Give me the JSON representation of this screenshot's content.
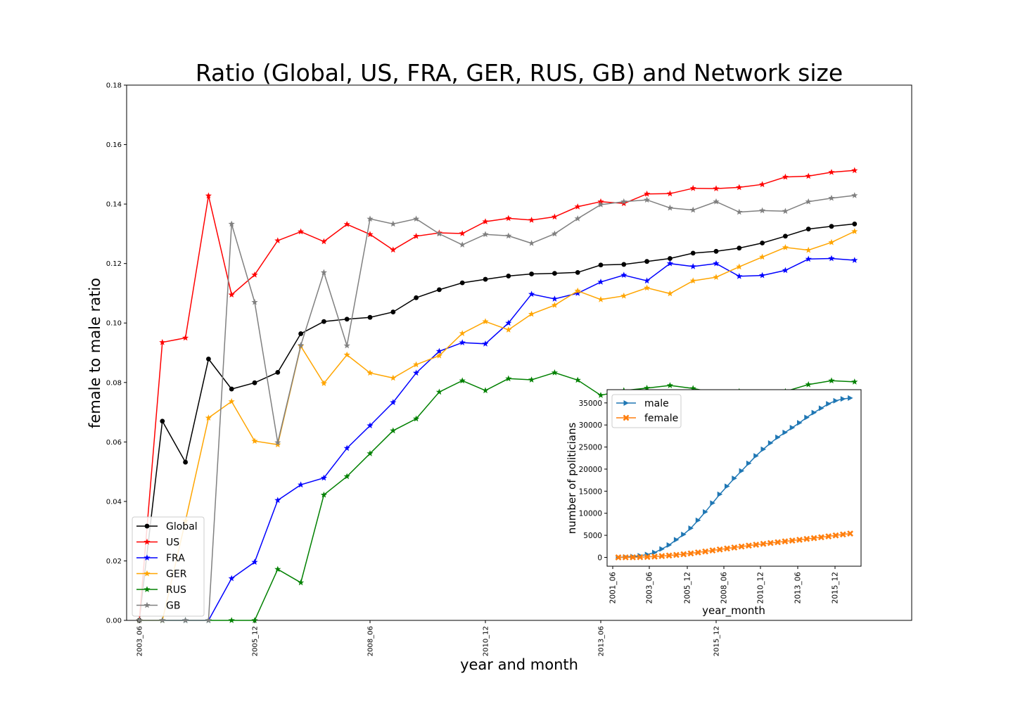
{
  "chart_data": [
    {
      "type": "line",
      "title": "Ratio (Global, US, FRA, GER, RUS, GB) and Network size",
      "xlabel": "year and month",
      "ylabel": "female to male ratio",
      "ylim": [
        0,
        0.18
      ],
      "yticks": [
        "0.00",
        "0.02",
        "0.04",
        "0.06",
        "0.08",
        "0.10",
        "0.12",
        "0.14",
        "0.16",
        "0.18"
      ],
      "xtick_labels": [
        "2003_06",
        "2005_12",
        "2008_06",
        "2010_12",
        "2013_06",
        "2015_12"
      ],
      "legend": "lower-left",
      "series": [
        {
          "name": "Global",
          "color": "#000000",
          "marker": "circle",
          "values": [
            null,
            0,
            0.067,
            0.0532,
            0.0879,
            0.0778,
            0.0799,
            0.0834,
            0.0964,
            0.1005,
            0.1013,
            0.1019,
            0.1037,
            0.1085,
            0.1112,
            0.1135,
            0.1147,
            0.1158,
            0.1165,
            0.1167,
            0.117,
            0.1195,
            0.1197,
            0.1207,
            0.1217,
            0.1235,
            0.1241,
            0.1252,
            0.1269,
            0.1292,
            0.1316,
            0.1325,
            0.1333
          ]
        },
        {
          "name": "US",
          "color": "#ff0000",
          "marker": "star",
          "values": [
            null,
            0,
            0.0935,
            0.095,
            0.1428,
            0.1095,
            0.1162,
            0.1277,
            0.1307,
            0.1274,
            0.1332,
            0.1298,
            0.1246,
            0.1292,
            0.1303,
            0.1301,
            0.1341,
            0.1352,
            0.1346,
            0.1357,
            0.1391,
            0.1408,
            0.1402,
            0.1434,
            0.1435,
            0.1453,
            0.1452,
            0.1456,
            0.1466,
            0.1491,
            0.1494,
            0.1507,
            0.1513
          ]
        },
        {
          "name": "FRA",
          "color": "#0000ff",
          "marker": "star",
          "values": [
            null,
            0,
            0,
            0,
            0,
            0.0141,
            0.0196,
            0.0404,
            0.0456,
            0.0479,
            0.0579,
            0.0655,
            0.0733,
            0.0832,
            0.0905,
            0.0934,
            0.093,
            0.1,
            0.1097,
            0.1081,
            0.11,
            0.1138,
            0.1161,
            0.1142,
            0.12,
            0.119,
            0.12,
            0.1157,
            0.116,
            0.1177,
            0.1215,
            0.1217,
            0.1211
          ]
        },
        {
          "name": "GER",
          "color": "#ffa500",
          "marker": "star",
          "values": [
            null,
            0,
            0,
            0.0334,
            0.0681,
            0.0736,
            0.0603,
            0.0591,
            0.0922,
            0.0797,
            0.0893,
            0.0832,
            0.0815,
            0.086,
            0.089,
            0.0965,
            0.1005,
            0.0977,
            0.103,
            0.106,
            0.1108,
            0.1079,
            0.1091,
            0.1118,
            0.1099,
            0.1142,
            0.1154,
            0.1189,
            0.1222,
            0.1254,
            0.1245,
            0.1271,
            0.1308
          ]
        },
        {
          "name": "RUS",
          "color": "#008000",
          "marker": "star",
          "values": [
            null,
            0,
            0,
            0,
            0,
            0,
            0,
            0.0172,
            0.0127,
            0.0422,
            0.0484,
            0.0561,
            0.0638,
            0.0678,
            0.0768,
            0.0806,
            0.0773,
            0.0813,
            0.0809,
            0.0833,
            0.0808,
            0.0757,
            0.0773,
            0.0781,
            0.079,
            0.078,
            0.0765,
            0.077,
            0.0765,
            0.077,
            0.0793,
            0.0806,
            0.0802
          ]
        },
        {
          "name": "GB",
          "color": "#808080",
          "marker": "star",
          "values": [
            null,
            0,
            0,
            0,
            0,
            0.1333,
            0.107,
            0.0598,
            0.0925,
            0.117,
            0.0924,
            0.135,
            0.1333,
            0.135,
            0.13,
            0.1263,
            0.1298,
            0.1293,
            0.1268,
            0.13,
            0.1351,
            0.1398,
            0.1408,
            0.1414,
            0.1387,
            0.138,
            0.1408,
            0.1373,
            0.1378,
            0.1376,
            0.1408,
            0.142,
            0.1429
          ]
        }
      ]
    },
    {
      "type": "line",
      "title": "",
      "xlabel": "year_month",
      "ylabel": "number of politicians",
      "ylim": [
        -2000,
        38000
      ],
      "yticks": [
        "0",
        "5000",
        "10000",
        "15000",
        "20000",
        "25000",
        "30000",
        "35000"
      ],
      "xtick_labels": [
        "2001_06",
        "2003_06",
        "2005_12",
        "2008_06",
        "2010_12",
        "2013_06",
        "2015_12"
      ],
      "legend": "top-left",
      "series": [
        {
          "name": "male",
          "color": "#1f77b4",
          "marker": "triangle-right",
          "values": [
            0,
            100,
            200,
            380,
            650,
            1100,
            1900,
            2800,
            4000,
            5200,
            6600,
            8400,
            10300,
            12300,
            14300,
            16100,
            17900,
            19600,
            21300,
            23000,
            24500,
            25900,
            27200,
            28300,
            29400,
            30500,
            31700,
            32800,
            33800,
            34800,
            35500,
            35900,
            36100
          ]
        },
        {
          "name": "female",
          "color": "#ff7f0e",
          "marker": "x",
          "values": [
            0,
            10,
            25,
            50,
            100,
            180,
            300,
            420,
            560,
            720,
            900,
            1120,
            1340,
            1570,
            1800,
            2020,
            2240,
            2460,
            2670,
            2870,
            3070,
            3260,
            3440,
            3630,
            3810,
            3990,
            4180,
            4370,
            4570,
            4770,
            4980,
            5200,
            5400
          ]
        }
      ]
    }
  ]
}
